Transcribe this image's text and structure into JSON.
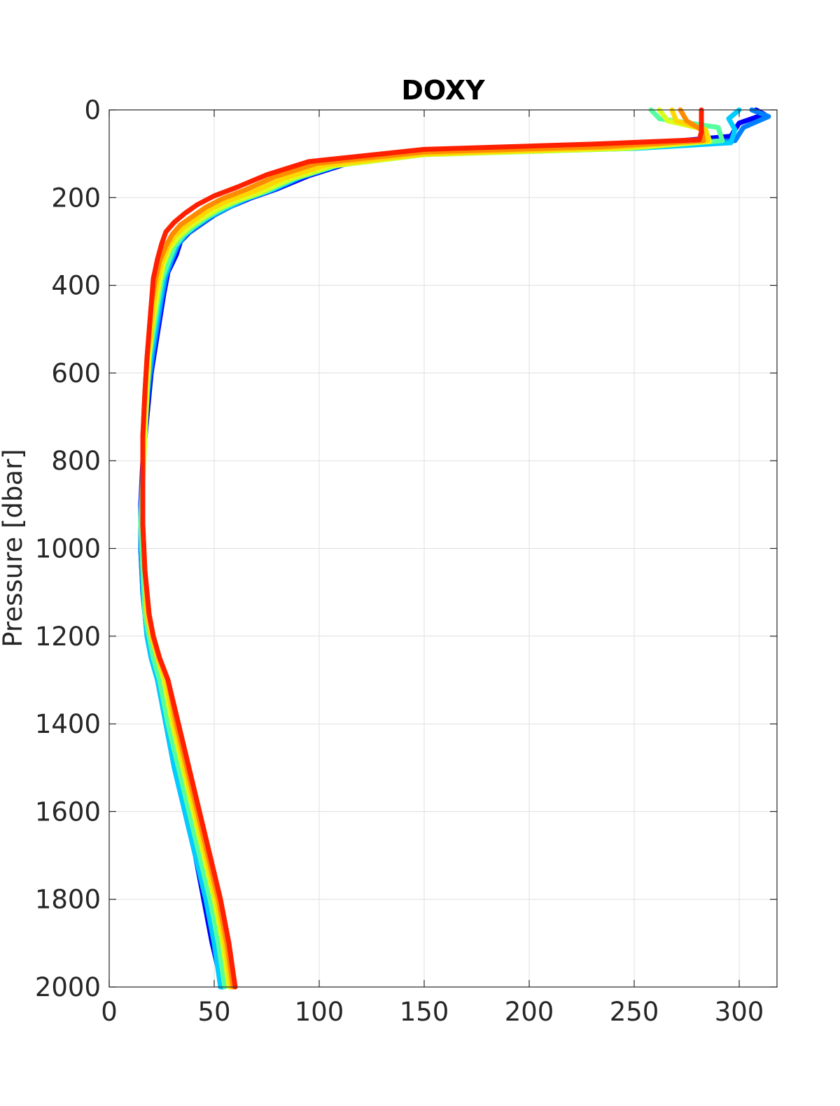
{
  "chart_data": {
    "type": "line",
    "title": "DOXY",
    "xlabel": "",
    "ylabel": "Pressure [dbar]",
    "xlim": [
      0,
      318
    ],
    "ylim": [
      0,
      2000
    ],
    "y_reversed": true,
    "grid": true,
    "x_ticks": [
      0,
      50,
      100,
      150,
      200,
      250,
      300
    ],
    "y_ticks": [
      0,
      200,
      400,
      600,
      800,
      1000,
      1200,
      1400,
      1600,
      1800,
      2000
    ],
    "legend": "none",
    "colors": {
      "axis": "#262626",
      "grid": "#dfdfdf",
      "title": "#000000"
    },
    "series": [
      {
        "color": "#0000ff",
        "x": [
          308,
          312,
          300,
          296,
          250,
          150,
          115,
          95,
          80,
          68,
          58,
          50,
          44,
          38,
          34,
          32,
          28,
          26,
          24,
          22,
          20,
          18,
          16,
          15,
          15,
          16,
          17,
          18,
          20,
          23,
          27,
          31,
          36,
          41,
          45,
          49,
          52
        ],
        "y": [
          0,
          10,
          30,
          60,
          80,
          95,
          120,
          150,
          180,
          200,
          220,
          240,
          260,
          280,
          300,
          330,
          370,
          420,
          480,
          540,
          600,
          700,
          800,
          900,
          1000,
          1100,
          1150,
          1200,
          1250,
          1300,
          1400,
          1500,
          1600,
          1700,
          1800,
          1900,
          1960
        ]
      },
      {
        "color": "#0080ff",
        "x": [
          306,
          314,
          302,
          298,
          250,
          150,
          112,
          92,
          78,
          66,
          57,
          49,
          43,
          37,
          33,
          30,
          27,
          25,
          23,
          21,
          19,
          17,
          16,
          15,
          15,
          16,
          17,
          19,
          22,
          26,
          30,
          35,
          40,
          45,
          49,
          52,
          54
        ],
        "y": [
          0,
          15,
          40,
          70,
          85,
          98,
          122,
          152,
          182,
          202,
          222,
          242,
          262,
          282,
          305,
          340,
          380,
          430,
          490,
          550,
          620,
          720,
          820,
          920,
          1000,
          1100,
          1150,
          1200,
          1250,
          1300,
          1400,
          1500,
          1600,
          1700,
          1800,
          1900,
          2000
        ]
      },
      {
        "color": "#00ccff",
        "x": [
          300,
          295,
          298,
          296,
          250,
          150,
          110,
          90,
          76,
          64,
          55,
          47,
          41,
          36,
          32,
          29,
          26,
          24,
          22,
          20,
          18,
          17,
          16,
          15,
          16,
          17,
          18,
          20,
          23,
          27,
          31,
          36,
          41,
          46,
          50,
          53
        ],
        "y": [
          0,
          20,
          45,
          75,
          88,
          100,
          125,
          155,
          185,
          205,
          225,
          245,
          265,
          285,
          310,
          345,
          385,
          440,
          500,
          560,
          640,
          740,
          840,
          940,
          1050,
          1150,
          1200,
          1250,
          1300,
          1400,
          1500,
          1600,
          1700,
          1800,
          1900,
          2000
        ]
      },
      {
        "color": "#55ff9f",
        "x": [
          258,
          262,
          290,
          292,
          248,
          150,
          108,
          88,
          74,
          62,
          53,
          46,
          40,
          35,
          31,
          28,
          25,
          23,
          21,
          19,
          18,
          17,
          16,
          15,
          16,
          17,
          19,
          21,
          24,
          28,
          33,
          38,
          43,
          48,
          52,
          55
        ],
        "y": [
          0,
          20,
          40,
          70,
          88,
          102,
          127,
          157,
          187,
          207,
          227,
          247,
          267,
          287,
          312,
          348,
          388,
          445,
          505,
          565,
          645,
          745,
          845,
          945,
          1050,
          1150,
          1200,
          1250,
          1300,
          1400,
          1500,
          1600,
          1700,
          1800,
          1900,
          2000
        ]
      },
      {
        "color": "#d8ff1f",
        "x": [
          262,
          266,
          284,
          286,
          245,
          150,
          106,
          86,
          72,
          60,
          51,
          44,
          38,
          33,
          29,
          26,
          24,
          22,
          20,
          19,
          18,
          17,
          16,
          16,
          17,
          18,
          20,
          23,
          26,
          30,
          35,
          40,
          45,
          50,
          54,
          57
        ],
        "y": [
          0,
          25,
          45,
          72,
          88,
          102,
          128,
          158,
          188,
          208,
          228,
          248,
          268,
          290,
          315,
          350,
          392,
          450,
          510,
          570,
          650,
          750,
          850,
          950,
          1050,
          1150,
          1200,
          1250,
          1300,
          1400,
          1500,
          1600,
          1700,
          1800,
          1900,
          2000
        ]
      },
      {
        "color": "#ffd700",
        "x": [
          268,
          270,
          284,
          285,
          240,
          150,
          103,
          83,
          69,
          57,
          48,
          42,
          36,
          31,
          28,
          25,
          23,
          21,
          20,
          18,
          17,
          16,
          16,
          16,
          17,
          18,
          20,
          23,
          27,
          31,
          36,
          41,
          46,
          51,
          55,
          58
        ],
        "y": [
          0,
          25,
          45,
          70,
          86,
          100,
          126,
          156,
          186,
          206,
          226,
          246,
          266,
          288,
          313,
          348,
          390,
          448,
          508,
          568,
          648,
          748,
          848,
          948,
          1050,
          1150,
          1200,
          1250,
          1300,
          1400,
          1500,
          1600,
          1700,
          1800,
          1900,
          2000
        ]
      },
      {
        "color": "#ff8c00",
        "x": [
          272,
          275,
          282,
          283,
          235,
          150,
          99,
          79,
          65,
          54,
          46,
          40,
          34,
          30,
          27,
          24,
          22,
          20,
          19,
          18,
          17,
          16,
          16,
          16,
          17,
          19,
          21,
          24,
          28,
          32,
          37,
          42,
          47,
          52,
          56,
          59
        ],
        "y": [
          0,
          25,
          45,
          70,
          84,
          96,
          122,
          152,
          182,
          202,
          222,
          242,
          262,
          284,
          310,
          345,
          388,
          446,
          506,
          566,
          646,
          746,
          846,
          946,
          1050,
          1150,
          1200,
          1250,
          1300,
          1400,
          1500,
          1600,
          1700,
          1800,
          1900,
          2000
        ]
      },
      {
        "color": "#ff2000",
        "x": [
          282,
          282,
          282,
          281,
          230,
          150,
          95,
          75,
          61,
          50,
          42,
          36,
          31,
          27,
          25,
          23,
          21,
          20,
          19,
          18,
          17,
          16,
          16,
          16,
          17,
          19,
          21,
          24,
          28,
          33,
          38,
          43,
          48,
          53,
          57,
          60
        ],
        "y": [
          0,
          25,
          50,
          68,
          78,
          90,
          118,
          148,
          176,
          196,
          216,
          236,
          256,
          278,
          305,
          340,
          385,
          445,
          505,
          565,
          645,
          745,
          845,
          945,
          1050,
          1150,
          1200,
          1250,
          1300,
          1400,
          1500,
          1600,
          1700,
          1800,
          1900,
          2000
        ]
      }
    ]
  }
}
